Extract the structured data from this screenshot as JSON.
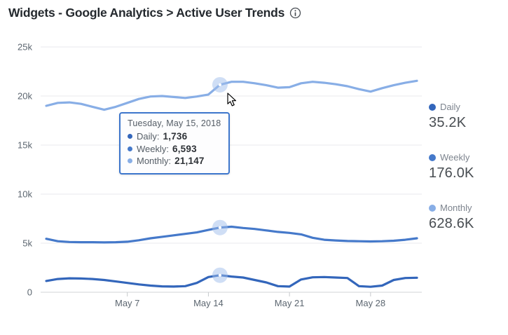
{
  "header": {
    "title": "Widgets - Google Analytics > Active User Trends"
  },
  "colors": {
    "grid": "#e9eaec",
    "axis": "#d2d4d7",
    "tick": "#c6c9cc",
    "axis_text": "#5c6670",
    "halo": "rgba(160,190,235,0.5)",
    "tooltip_border": "#3d76cc"
  },
  "chart_data": {
    "type": "line",
    "title": "Active User Trends",
    "x": [
      "Apr 30",
      "May 1",
      "May 2",
      "May 3",
      "May 4",
      "May 5",
      "May 6",
      "May 7",
      "May 8",
      "May 9",
      "May 10",
      "May 11",
      "May 12",
      "May 13",
      "May 14",
      "May 15",
      "May 16",
      "May 17",
      "May 18",
      "May 19",
      "May 20",
      "May 21",
      "May 22",
      "May 23",
      "May 24",
      "May 25",
      "May 26",
      "May 27",
      "May 28",
      "May 29",
      "May 30",
      "May 31",
      "Jun 1"
    ],
    "x_tick_labels": [
      "May 7",
      "May 14",
      "May 21",
      "May 28"
    ],
    "x_tick_positions": [
      7,
      14,
      21,
      28
    ],
    "y_tick_labels": [
      "0",
      "5k",
      "10k",
      "15k",
      "20k",
      "25k"
    ],
    "y_tick_values": [
      0,
      5000,
      10000,
      15000,
      20000,
      25000
    ],
    "ylim": [
      0,
      25000
    ],
    "grid": true,
    "legend_position": "right",
    "highlight_index": 15,
    "highlight_date": "Tuesday, May 15, 2018",
    "series": [
      {
        "name": "Daily",
        "color": "#3366bb",
        "values": [
          1150,
          1350,
          1420,
          1400,
          1350,
          1250,
          1100,
          950,
          800,
          680,
          600,
          580,
          620,
          950,
          1550,
          1736,
          1600,
          1500,
          1250,
          1000,
          620,
          580,
          1300,
          1520,
          1550,
          1500,
          1450,
          620,
          560,
          680,
          1250,
          1450,
          1480
        ]
      },
      {
        "name": "Weekly",
        "color": "#4579ca",
        "values": [
          5450,
          5200,
          5120,
          5100,
          5100,
          5080,
          5100,
          5150,
          5300,
          5500,
          5650,
          5800,
          5950,
          6100,
          6350,
          6593,
          6680,
          6550,
          6450,
          6300,
          6150,
          6050,
          5900,
          5550,
          5350,
          5280,
          5220,
          5200,
          5180,
          5200,
          5250,
          5350,
          5500
        ]
      },
      {
        "name": "Monthly",
        "color": "#88aee6",
        "values": [
          19000,
          19300,
          19350,
          19200,
          18900,
          18600,
          18900,
          19300,
          19700,
          19950,
          20000,
          19900,
          19800,
          19950,
          20150,
          21147,
          21450,
          21450,
          21300,
          21100,
          20850,
          20900,
          21300,
          21450,
          21350,
          21200,
          21000,
          20700,
          20450,
          20800,
          21100,
          21350,
          21550
        ]
      }
    ]
  },
  "tooltip": {
    "date": "Tuesday, May 15, 2018",
    "rows": [
      {
        "label": "Daily:",
        "value": "1,736"
      },
      {
        "label": "Weekly:",
        "value": "6,593"
      },
      {
        "label": "Monthly:",
        "value": "21,147"
      }
    ]
  },
  "legend": [
    {
      "label": "Daily",
      "value": "35.2K"
    },
    {
      "label": "Weekly",
      "value": "176.0K"
    },
    {
      "label": "Monthly",
      "value": "628.6K"
    }
  ]
}
